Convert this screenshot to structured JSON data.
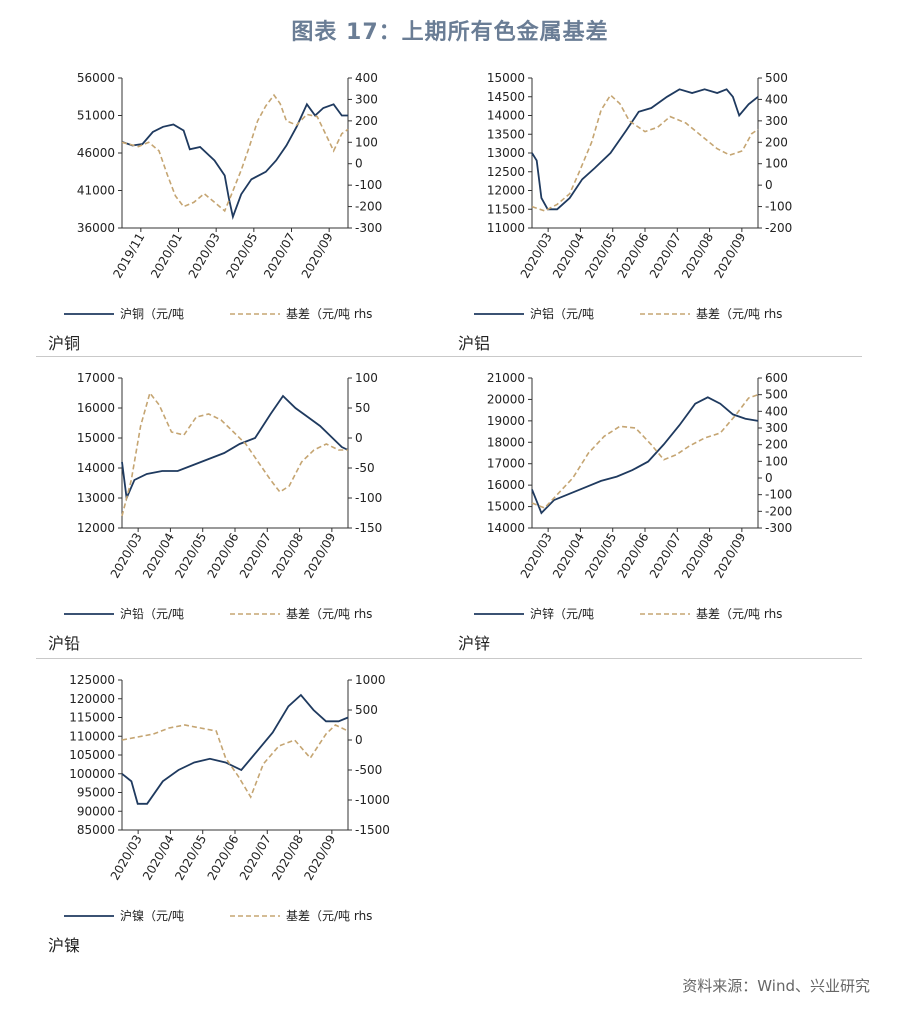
{
  "title": "图表 17：上期所有色金属基差",
  "source": "资料来源：Wind、兴业研究",
  "colors": {
    "price": "#1f3a5f",
    "basis": "#c5a572",
    "axis": "#333333",
    "separator": "#c9c9c9"
  },
  "chart_data": [
    {
      "type": "line",
      "caption": "沪铜",
      "x_ticks": [
        "2019/11",
        "2020/01",
        "2020/03",
        "2020/05",
        "2020/07",
        "2020/09"
      ],
      "x_range": [
        0,
        11
      ],
      "ylim_left": [
        36000,
        56000
      ],
      "yticks_left": [
        36000,
        41000,
        46000,
        51000,
        56000
      ],
      "ylim_right": [
        -300,
        400
      ],
      "yticks_right": [
        -300,
        -200,
        -100,
        0,
        100,
        200,
        300,
        400
      ],
      "series": [
        {
          "name": "沪铜（元/吨",
          "axis": "left",
          "style": "solid",
          "points": [
            [
              0,
              47500
            ],
            [
              0.5,
              47000
            ],
            [
              1,
              47200
            ],
            [
              1.5,
              48800
            ],
            [
              2,
              49500
            ],
            [
              2.5,
              49800
            ],
            [
              3,
              49000
            ],
            [
              3.3,
              46500
            ],
            [
              3.8,
              46800
            ],
            [
              4.5,
              45000
            ],
            [
              5,
              43000
            ],
            [
              5.2,
              40000
            ],
            [
              5.4,
              37500
            ],
            [
              5.8,
              40500
            ],
            [
              6.3,
              42500
            ],
            [
              7,
              43500
            ],
            [
              7.5,
              45000
            ],
            [
              8,
              47000
            ],
            [
              8.5,
              49500
            ],
            [
              9,
              52500
            ],
            [
              9.4,
              51000
            ],
            [
              9.8,
              52000
            ],
            [
              10.3,
              52500
            ],
            [
              10.7,
              51000
            ],
            [
              11,
              51000
            ]
          ]
        },
        {
          "name": "基差（元/吨 rhs",
          "axis": "right",
          "style": "dashed",
          "points": [
            [
              0,
              100
            ],
            [
              0.8,
              80
            ],
            [
              1.3,
              100
            ],
            [
              1.8,
              60
            ],
            [
              2.2,
              -50
            ],
            [
              2.6,
              -150
            ],
            [
              3,
              -200
            ],
            [
              3.5,
              -180
            ],
            [
              4,
              -140
            ],
            [
              4.5,
              -180
            ],
            [
              5,
              -220
            ],
            [
              5.3,
              -150
            ],
            [
              5.8,
              -30
            ],
            [
              6.2,
              80
            ],
            [
              6.6,
              200
            ],
            [
              7,
              270
            ],
            [
              7.4,
              320
            ],
            [
              7.7,
              280
            ],
            [
              8,
              200
            ],
            [
              8.5,
              180
            ],
            [
              9,
              230
            ],
            [
              9.5,
              220
            ],
            [
              10,
              120
            ],
            [
              10.3,
              60
            ],
            [
              10.7,
              140
            ],
            [
              11,
              160
            ]
          ]
        }
      ]
    },
    {
      "type": "line",
      "caption": "沪铝",
      "x_ticks": [
        "2020/03",
        "2020/04",
        "2020/05",
        "2020/06",
        "2020/07",
        "2020/08",
        "2020/09"
      ],
      "x_range": [
        0,
        7.2
      ],
      "ylim_left": [
        11000,
        15000
      ],
      "yticks_left": [
        11000,
        11500,
        12000,
        12500,
        13000,
        13500,
        14000,
        14500,
        15000
      ],
      "ylim_right": [
        -200,
        500
      ],
      "yticks_right": [
        -200,
        -100,
        0,
        100,
        200,
        300,
        400,
        500
      ],
      "series": [
        {
          "name": "沪铝（元/吨",
          "axis": "left",
          "style": "solid",
          "points": [
            [
              0,
              13000
            ],
            [
              0.15,
              12800
            ],
            [
              0.3,
              11800
            ],
            [
              0.5,
              11500
            ],
            [
              0.8,
              11500
            ],
            [
              1.2,
              11800
            ],
            [
              1.6,
              12300
            ],
            [
              2,
              12600
            ],
            [
              2.5,
              13000
            ],
            [
              3,
              13600
            ],
            [
              3.4,
              14100
            ],
            [
              3.8,
              14200
            ],
            [
              4.3,
              14500
            ],
            [
              4.7,
              14700
            ],
            [
              5.1,
              14600
            ],
            [
              5.5,
              14700
            ],
            [
              5.9,
              14600
            ],
            [
              6.2,
              14700
            ],
            [
              6.4,
              14500
            ],
            [
              6.6,
              14000
            ],
            [
              6.9,
              14300
            ],
            [
              7.2,
              14500
            ]
          ]
        },
        {
          "name": "基差（元/吨 rhs",
          "axis": "right",
          "style": "dashed",
          "points": [
            [
              0,
              -100
            ],
            [
              0.4,
              -120
            ],
            [
              0.8,
              -90
            ],
            [
              1.2,
              -40
            ],
            [
              1.5,
              60
            ],
            [
              1.9,
              200
            ],
            [
              2.2,
              350
            ],
            [
              2.5,
              420
            ],
            [
              2.8,
              380
            ],
            [
              3.1,
              300
            ],
            [
              3.6,
              250
            ],
            [
              4,
              270
            ],
            [
              4.4,
              320
            ],
            [
              4.9,
              290
            ],
            [
              5.4,
              230
            ],
            [
              5.9,
              170
            ],
            [
              6.3,
              140
            ],
            [
              6.7,
              160
            ],
            [
              7,
              240
            ],
            [
              7.2,
              260
            ]
          ]
        }
      ]
    },
    {
      "type": "line",
      "caption": "沪铅",
      "x_ticks": [
        "2020/03",
        "2020/04",
        "2020/05",
        "2020/06",
        "2020/07",
        "2020/08",
        "2020/09"
      ],
      "x_range": [
        0,
        7.3
      ],
      "ylim_left": [
        12000,
        17000
      ],
      "yticks_left": [
        12000,
        13000,
        14000,
        15000,
        16000,
        17000
      ],
      "ylim_right": [
        -150,
        100
      ],
      "yticks_right": [
        -150,
        -100,
        -50,
        0,
        50,
        100
      ],
      "series": [
        {
          "name": "沪铅（元/吨",
          "axis": "left",
          "style": "solid",
          "points": [
            [
              0,
              14200
            ],
            [
              0.15,
              13000
            ],
            [
              0.4,
              13600
            ],
            [
              0.8,
              13800
            ],
            [
              1.3,
              13900
            ],
            [
              1.8,
              13900
            ],
            [
              2.3,
              14100
            ],
            [
              2.8,
              14300
            ],
            [
              3.3,
              14500
            ],
            [
              3.8,
              14800
            ],
            [
              4.3,
              15000
            ],
            [
              4.8,
              15800
            ],
            [
              5.2,
              16400
            ],
            [
              5.6,
              16000
            ],
            [
              6,
              15700
            ],
            [
              6.4,
              15400
            ],
            [
              6.8,
              15000
            ],
            [
              7.1,
              14700
            ],
            [
              7.3,
              14600
            ]
          ]
        },
        {
          "name": "基差（元/吨 rhs",
          "axis": "right",
          "style": "dashed",
          "points": [
            [
              0,
              -130
            ],
            [
              0.3,
              -70
            ],
            [
              0.6,
              20
            ],
            [
              0.9,
              75
            ],
            [
              1.2,
              55
            ],
            [
              1.6,
              10
            ],
            [
              2,
              5
            ],
            [
              2.4,
              35
            ],
            [
              2.8,
              40
            ],
            [
              3.2,
              30
            ],
            [
              3.6,
              10
            ],
            [
              4,
              -10
            ],
            [
              4.4,
              -40
            ],
            [
              4.8,
              -70
            ],
            [
              5.1,
              -90
            ],
            [
              5.4,
              -80
            ],
            [
              5.8,
              -40
            ],
            [
              6.2,
              -20
            ],
            [
              6.6,
              -10
            ],
            [
              7,
              -20
            ],
            [
              7.3,
              -20
            ]
          ]
        }
      ]
    },
    {
      "type": "line",
      "caption": "沪锌",
      "x_ticks": [
        "2020/03",
        "2020/04",
        "2020/05",
        "2020/06",
        "2020/07",
        "2020/08",
        "2020/09"
      ],
      "x_range": [
        0,
        7.2
      ],
      "ylim_left": [
        14000,
        21000
      ],
      "yticks_left": [
        14000,
        15000,
        16000,
        17000,
        18000,
        19000,
        20000,
        21000
      ],
      "ylim_right": [
        -300,
        600
      ],
      "yticks_right": [
        -300,
        -200,
        -100,
        0,
        100,
        200,
        300,
        400,
        500,
        600
      ],
      "series": [
        {
          "name": "沪锌（元/吨",
          "axis": "left",
          "style": "solid",
          "points": [
            [
              0,
              15800
            ],
            [
              0.3,
              14700
            ],
            [
              0.7,
              15300
            ],
            [
              1.2,
              15600
            ],
            [
              1.7,
              15900
            ],
            [
              2.2,
              16200
            ],
            [
              2.7,
              16400
            ],
            [
              3.2,
              16700
            ],
            [
              3.7,
              17100
            ],
            [
              4.2,
              17900
            ],
            [
              4.7,
              18800
            ],
            [
              5.2,
              19800
            ],
            [
              5.6,
              20100
            ],
            [
              6,
              19800
            ],
            [
              6.4,
              19300
            ],
            [
              6.8,
              19100
            ],
            [
              7.2,
              19000
            ]
          ]
        },
        {
          "name": "基差（元/吨 rhs",
          "axis": "right",
          "style": "dashed",
          "points": [
            [
              0,
              -150
            ],
            [
              0.4,
              -180
            ],
            [
              0.8,
              -100
            ],
            [
              1.3,
              0
            ],
            [
              1.8,
              150
            ],
            [
              2.3,
              250
            ],
            [
              2.8,
              310
            ],
            [
              3.3,
              300
            ],
            [
              3.8,
              200
            ],
            [
              4.2,
              110
            ],
            [
              4.6,
              140
            ],
            [
              5,
              190
            ],
            [
              5.5,
              240
            ],
            [
              6,
              270
            ],
            [
              6.5,
              380
            ],
            [
              6.9,
              480
            ],
            [
              7.2,
              500
            ]
          ]
        }
      ]
    },
    {
      "type": "line",
      "caption": "沪镍",
      "x_ticks": [
        "2020/03",
        "2020/04",
        "2020/05",
        "2020/06",
        "2020/07",
        "2020/08",
        "2020/09"
      ],
      "x_range": [
        0,
        7.2
      ],
      "ylim_left": [
        85000,
        125000
      ],
      "yticks_left": [
        85000,
        90000,
        95000,
        100000,
        105000,
        110000,
        115000,
        120000,
        125000
      ],
      "ylim_right": [
        -1500,
        1000
      ],
      "yticks_right": [
        -1500,
        -1000,
        -500,
        0,
        500,
        1000
      ],
      "series": [
        {
          "name": "沪镍（元/吨",
          "axis": "left",
          "style": "solid",
          "points": [
            [
              0,
              100000
            ],
            [
              0.3,
              98000
            ],
            [
              0.5,
              92000
            ],
            [
              0.8,
              92000
            ],
            [
              1.3,
              98000
            ],
            [
              1.8,
              101000
            ],
            [
              2.3,
              103000
            ],
            [
              2.8,
              104000
            ],
            [
              3.3,
              103000
            ],
            [
              3.8,
              101000
            ],
            [
              4.3,
              106000
            ],
            [
              4.8,
              111000
            ],
            [
              5.3,
              118000
            ],
            [
              5.7,
              121000
            ],
            [
              6.1,
              117000
            ],
            [
              6.5,
              114000
            ],
            [
              6.9,
              114000
            ],
            [
              7.2,
              115000
            ]
          ]
        },
        {
          "name": "基差（元/吨 rhs",
          "axis": "right",
          "style": "dashed",
          "points": [
            [
              0,
              0
            ],
            [
              0.5,
              50
            ],
            [
              1,
              100
            ],
            [
              1.5,
              200
            ],
            [
              2,
              250
            ],
            [
              2.5,
              200
            ],
            [
              3,
              150
            ],
            [
              3.3,
              -300
            ],
            [
              3.7,
              -600
            ],
            [
              4.1,
              -950
            ],
            [
              4.5,
              -400
            ],
            [
              5,
              -100
            ],
            [
              5.5,
              0
            ],
            [
              6,
              -300
            ],
            [
              6.5,
              100
            ],
            [
              6.8,
              250
            ],
            [
              7.2,
              150
            ]
          ]
        }
      ]
    }
  ]
}
